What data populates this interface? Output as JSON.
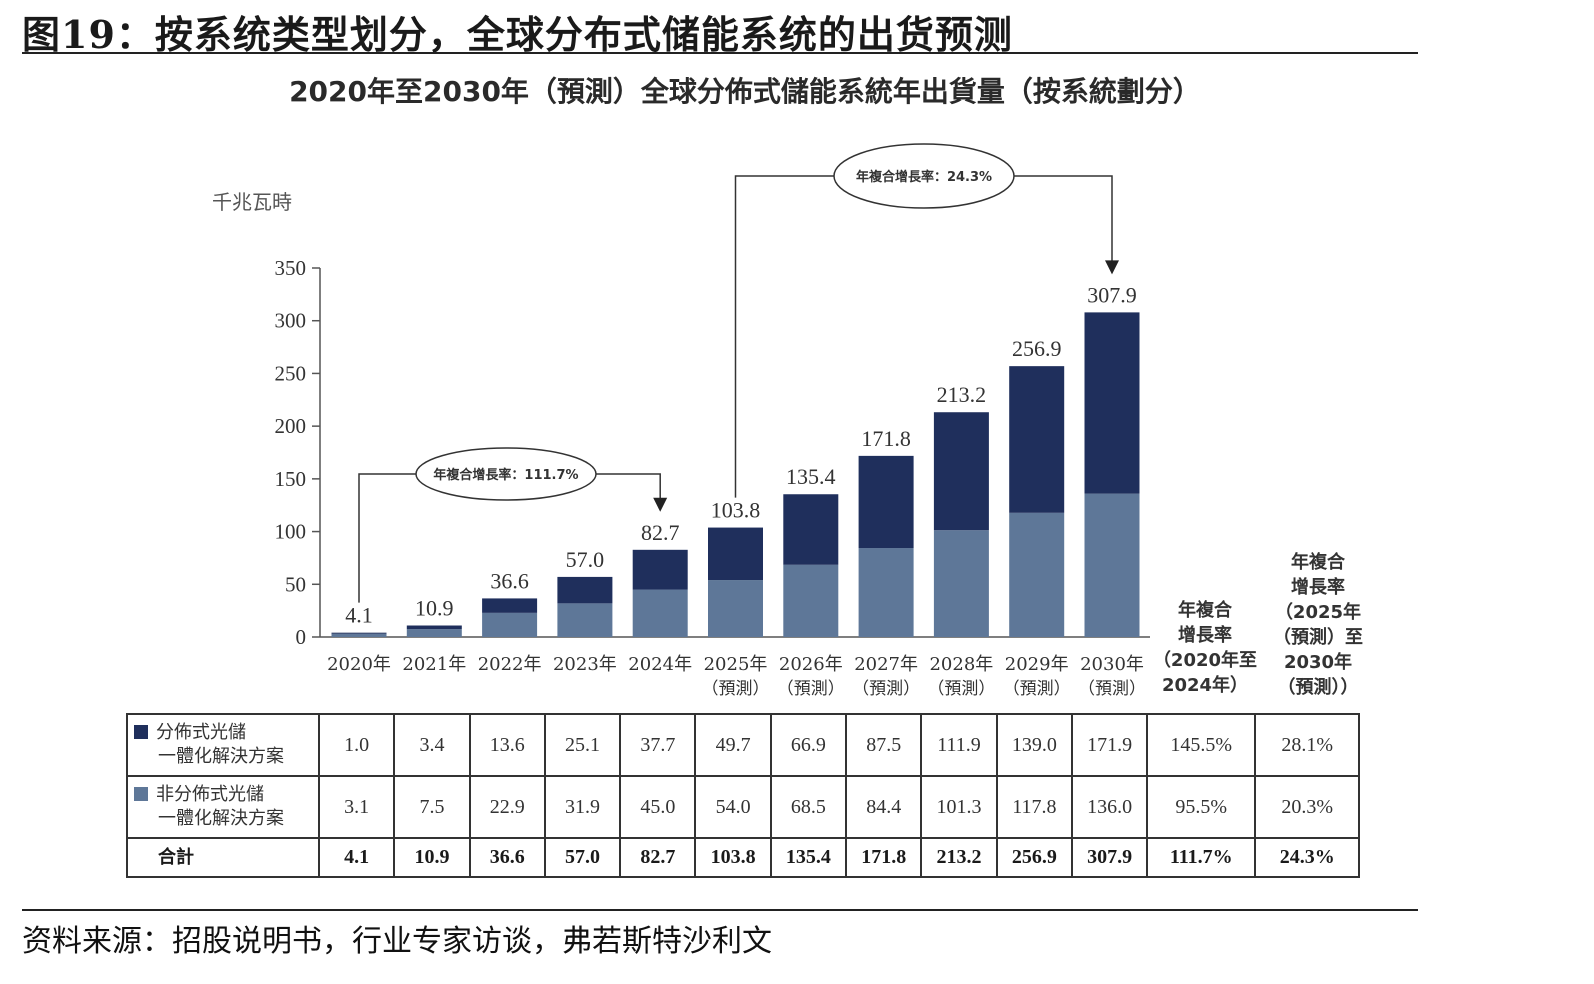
{
  "figure_title": "图19：按系统类型划分，全球分布式储能系统的出货预测",
  "source": "资料来源：招股说明书，行业专家访谈，弗若斯特沙利文",
  "colors": {
    "dark": "#1f2f5c",
    "light": "#5e7798",
    "line": "#333333"
  },
  "chart_data": {
    "type": "bar",
    "stacked": true,
    "title": "2020年至2030年（預測）全球分佈式儲能系統年出貨量（按系統劃分）",
    "ylabel": "千兆瓦時",
    "ylim": [
      0,
      350
    ],
    "yticks": [
      0,
      50,
      100,
      150,
      200,
      250,
      300,
      350
    ],
    "grid": false,
    "categories": [
      "2020年",
      "2021年",
      "2022年",
      "2023年",
      "2024年",
      "2025年（預測）",
      "2026年（預測）",
      "2027年（預測）",
      "2028年（預測）",
      "2029年（預測）",
      "2030年（預測）"
    ],
    "category_lines": [
      [
        "2020年"
      ],
      [
        "2021年"
      ],
      [
        "2022年"
      ],
      [
        "2023年"
      ],
      [
        "2024年"
      ],
      [
        "2025年",
        "（預測）"
      ],
      [
        "2026年",
        "（預測）"
      ],
      [
        "2027年",
        "（預測）"
      ],
      [
        "2028年",
        "（預測）"
      ],
      [
        "2029年",
        "（預測）"
      ],
      [
        "2030年",
        "（預測）"
      ]
    ],
    "series": [
      {
        "name": "非分佈式光儲一體化解決方案",
        "name_lines": [
          "非分佈式光儲",
          "一體化解決方案"
        ],
        "color": "#5e7798",
        "values": [
          3.1,
          7.5,
          22.9,
          31.9,
          45.0,
          54.0,
          68.5,
          84.4,
          101.3,
          117.8,
          136.0
        ],
        "value_labels": [
          "3.1",
          "7.5",
          "22.9",
          "31.9",
          "45.0",
          "54.0",
          "68.5",
          "84.4",
          "101.3",
          "117.8",
          "136.0"
        ],
        "cagr": [
          "95.5%",
          "20.3%"
        ]
      },
      {
        "name": "分佈式光儲一體化解決方案",
        "name_lines": [
          "分佈式光儲",
          "一體化解決方案"
        ],
        "color": "#1f2f5c",
        "values": [
          1.0,
          3.4,
          13.6,
          25.1,
          37.7,
          49.7,
          66.9,
          87.5,
          111.9,
          139.0,
          171.9
        ],
        "value_labels": [
          "1.0",
          "3.4",
          "13.6",
          "25.1",
          "37.7",
          "49.7",
          "66.9",
          "87.5",
          "111.9",
          "139.0",
          "171.9"
        ],
        "cagr": [
          "145.5%",
          "28.1%"
        ]
      }
    ],
    "totals": [
      4.1,
      10.9,
      36.6,
      57.0,
      82.7,
      103.8,
      135.4,
      171.8,
      213.2,
      256.9,
      307.9
    ],
    "total_labels": [
      "4.1",
      "10.9",
      "36.6",
      "57.0",
      "82.7",
      "103.8",
      "135.4",
      "171.8",
      "213.2",
      "256.9",
      "307.9"
    ],
    "total_row_label": "合計",
    "total_cagr": [
      "111.7%",
      "24.3%"
    ],
    "cagr_headers": [
      [
        "年複合",
        "增長率",
        "（2020年至",
        "2024年）"
      ],
      [
        "年複合",
        "增長率",
        "（2025年",
        "（預測）至",
        "2030年",
        "（預測））"
      ]
    ],
    "annotations": [
      {
        "text": "年複合增長率：111.7%",
        "from": "2020年",
        "to": "2024年"
      },
      {
        "text": "年複合增長率：24.3%",
        "from": "2025年（預測）",
        "to": "2030年（預測）"
      }
    ]
  }
}
